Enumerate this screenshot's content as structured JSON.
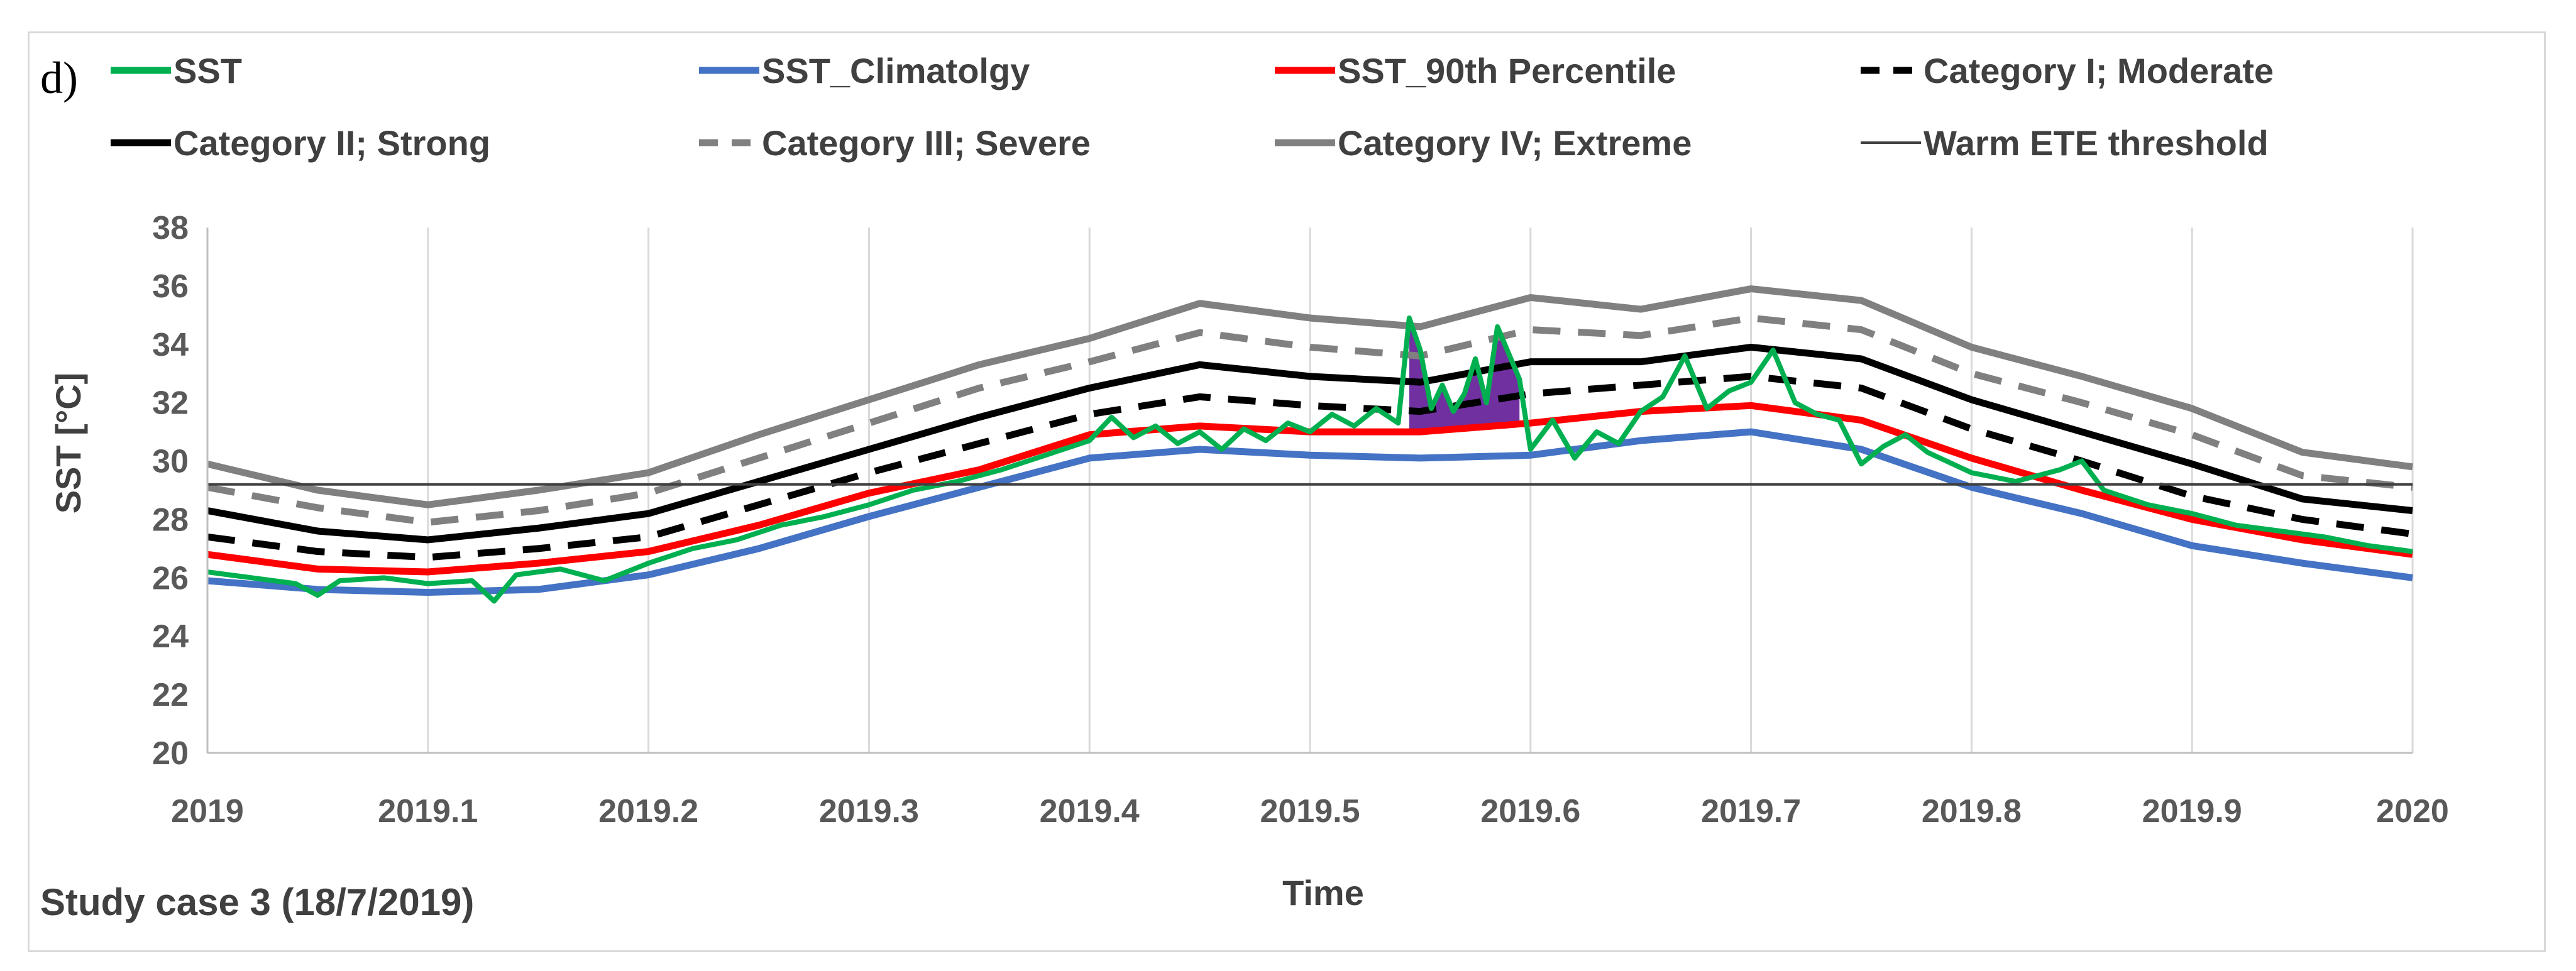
{
  "chart_data": {
    "type": "line",
    "panel_label": "d)",
    "note": "Study case 3 (18/7/2019)",
    "xlabel": "Time",
    "ylabel": "SST [°C]",
    "xlim": [
      2019,
      2020
    ],
    "ylim": [
      20,
      38
    ],
    "x_ticks": [
      "2019",
      "2019.1",
      "2019.2",
      "2019.3",
      "2019.4",
      "2019.5",
      "2019.6",
      "2019.7",
      "2019.8",
      "2019.9",
      "2020"
    ],
    "y_ticks": [
      "20",
      "22",
      "24",
      "26",
      "28",
      "30",
      "32",
      "34",
      "36",
      "38"
    ],
    "grid": "vertical",
    "legend_position": "top",
    "threshold": {
      "name": "Warm ETE threshold",
      "value": 29.2,
      "color": "#404040"
    },
    "shaded_event": {
      "x_start": 2019.545,
      "x_end": 2019.595,
      "color": "#7030a0"
    },
    "legend": [
      {
        "name": "SST",
        "color": "#00b050",
        "style": "solid"
      },
      {
        "name": "SST_Climatolgy",
        "color": "#4472c4",
        "style": "solid"
      },
      {
        "name": "SST_90th Percentile",
        "color": "#ff0000",
        "style": "solid"
      },
      {
        "name": "Category I; Moderate",
        "color": "#000000",
        "style": "dashed"
      },
      {
        "name": "Category II; Strong",
        "color": "#000000",
        "style": "solid"
      },
      {
        "name": "Category III; Severe",
        "color": "#808080",
        "style": "dashed"
      },
      {
        "name": "Category IV; Extreme",
        "color": "#808080",
        "style": "solid"
      },
      {
        "name": "Warm ETE threshold",
        "color": "#404040",
        "style": "thin"
      }
    ],
    "series": [
      {
        "name": "SST_Climatolgy",
        "color": "#4472c4",
        "style": "solid",
        "x": [
          2019,
          2019.05,
          2019.1,
          2019.15,
          2019.2,
          2019.25,
          2019.3,
          2019.35,
          2019.4,
          2019.45,
          2019.5,
          2019.55,
          2019.6,
          2019.65,
          2019.7,
          2019.75,
          2019.8,
          2019.85,
          2019.9,
          2019.95,
          2020
        ],
        "y": [
          25.9,
          25.6,
          25.5,
          25.6,
          26.1,
          27.0,
          28.1,
          29.1,
          30.1,
          30.4,
          30.2,
          30.1,
          30.2,
          30.7,
          31.0,
          30.4,
          29.1,
          28.2,
          27.1,
          26.5,
          26.0
        ]
      },
      {
        "name": "SST_90th Percentile",
        "color": "#ff0000",
        "style": "solid",
        "x": [
          2019,
          2019.05,
          2019.1,
          2019.15,
          2019.2,
          2019.25,
          2019.3,
          2019.35,
          2019.4,
          2019.45,
          2019.5,
          2019.55,
          2019.6,
          2019.65,
          2019.7,
          2019.75,
          2019.8,
          2019.85,
          2019.9,
          2019.95,
          2020
        ],
        "y": [
          26.8,
          26.3,
          26.2,
          26.5,
          26.9,
          27.8,
          28.9,
          29.7,
          30.9,
          31.2,
          31.0,
          31.0,
          31.3,
          31.7,
          31.9,
          31.4,
          30.1,
          29.0,
          28.0,
          27.3,
          26.8
        ]
      },
      {
        "name": "Category I; Moderate",
        "color": "#000000",
        "style": "dashed",
        "x": [
          2019,
          2019.05,
          2019.1,
          2019.15,
          2019.2,
          2019.25,
          2019.3,
          2019.35,
          2019.4,
          2019.45,
          2019.5,
          2019.55,
          2019.6,
          2019.65,
          2019.7,
          2019.75,
          2019.8,
          2019.85,
          2019.9,
          2019.95,
          2020
        ],
        "y": [
          27.4,
          26.9,
          26.7,
          27.0,
          27.4,
          28.5,
          29.6,
          30.6,
          31.6,
          32.2,
          31.9,
          31.7,
          32.3,
          32.6,
          32.9,
          32.5,
          31.1,
          30.0,
          28.8,
          28.0,
          27.5
        ]
      },
      {
        "name": "Category II; Strong",
        "color": "#000000",
        "style": "solid",
        "x": [
          2019,
          2019.05,
          2019.1,
          2019.15,
          2019.2,
          2019.25,
          2019.3,
          2019.35,
          2019.4,
          2019.45,
          2019.5,
          2019.55,
          2019.6,
          2019.65,
          2019.7,
          2019.75,
          2019.8,
          2019.85,
          2019.9,
          2019.95,
          2020
        ],
        "y": [
          28.3,
          27.6,
          27.3,
          27.7,
          28.2,
          29.3,
          30.4,
          31.5,
          32.5,
          33.3,
          32.9,
          32.7,
          33.4,
          33.4,
          33.9,
          33.5,
          32.1,
          31.0,
          29.9,
          28.7,
          28.3
        ]
      },
      {
        "name": "Category III; Severe",
        "color": "#808080",
        "style": "dashed",
        "x": [
          2019,
          2019.05,
          2019.1,
          2019.15,
          2019.2,
          2019.25,
          2019.3,
          2019.35,
          2019.4,
          2019.45,
          2019.5,
          2019.55,
          2019.6,
          2019.65,
          2019.7,
          2019.75,
          2019.8,
          2019.85,
          2019.9,
          2019.95,
          2020
        ],
        "y": [
          29.1,
          28.4,
          27.9,
          28.3,
          28.9,
          30.1,
          31.3,
          32.5,
          33.4,
          34.4,
          33.9,
          33.6,
          34.5,
          34.3,
          34.9,
          34.5,
          33.0,
          32.0,
          30.9,
          29.5,
          29.1
        ]
      },
      {
        "name": "Category IV; Extreme",
        "color": "#808080",
        "style": "solid",
        "x": [
          2019,
          2019.05,
          2019.1,
          2019.15,
          2019.2,
          2019.25,
          2019.3,
          2019.35,
          2019.4,
          2019.45,
          2019.5,
          2019.55,
          2019.6,
          2019.65,
          2019.7,
          2019.75,
          2019.8,
          2019.85,
          2019.9,
          2019.95,
          2020
        ],
        "y": [
          29.9,
          29.0,
          28.5,
          29.0,
          29.6,
          30.9,
          32.1,
          33.3,
          34.2,
          35.4,
          34.9,
          34.6,
          35.6,
          35.2,
          35.9,
          35.5,
          33.9,
          32.9,
          31.8,
          30.3,
          29.8
        ]
      },
      {
        "name": "SST",
        "color": "#00b050",
        "style": "solid",
        "x": [
          2019,
          2019.02,
          2019.04,
          2019.05,
          2019.06,
          2019.08,
          2019.1,
          2019.12,
          2019.13,
          2019.14,
          2019.16,
          2019.18,
          2019.2,
          2019.22,
          2019.24,
          2019.26,
          2019.28,
          2019.3,
          2019.32,
          2019.34,
          2019.36,
          2019.38,
          2019.4,
          2019.41,
          2019.42,
          2019.43,
          2019.44,
          2019.45,
          2019.46,
          2019.47,
          2019.48,
          2019.49,
          2019.5,
          2019.51,
          2019.52,
          2019.53,
          2019.54,
          2019.545,
          2019.55,
          2019.555,
          2019.56,
          2019.565,
          2019.57,
          2019.575,
          2019.58,
          2019.585,
          2019.59,
          2019.595,
          2019.6,
          2019.61,
          2019.62,
          2019.63,
          2019.64,
          2019.65,
          2019.66,
          2019.67,
          2019.68,
          2019.69,
          2019.7,
          2019.71,
          2019.72,
          2019.73,
          2019.74,
          2019.75,
          2019.76,
          2019.77,
          2019.78,
          2019.8,
          2019.82,
          2019.84,
          2019.85,
          2019.86,
          2019.88,
          2019.9,
          2019.92,
          2019.94,
          2019.96,
          2019.98,
          2020
        ],
        "y": [
          26.2,
          26.0,
          25.8,
          25.4,
          25.9,
          26.0,
          25.8,
          25.9,
          25.2,
          26.1,
          26.3,
          25.9,
          26.5,
          27.0,
          27.3,
          27.8,
          28.1,
          28.5,
          29.0,
          29.3,
          29.7,
          30.2,
          30.7,
          31.5,
          30.8,
          31.2,
          30.6,
          31.0,
          30.4,
          31.1,
          30.7,
          31.3,
          31.0,
          31.6,
          31.2,
          31.8,
          31.3,
          34.9,
          33.8,
          31.8,
          32.6,
          31.7,
          32.3,
          33.5,
          32.0,
          34.6,
          33.7,
          32.8,
          30.4,
          31.4,
          30.1,
          31.0,
          30.6,
          31.7,
          32.2,
          33.6,
          31.8,
          32.4,
          32.7,
          33.8,
          32.0,
          31.6,
          31.4,
          29.9,
          30.5,
          30.9,
          30.3,
          29.6,
          29.3,
          29.7,
          30.0,
          29.0,
          28.5,
          28.2,
          27.8,
          27.6,
          27.4,
          27.1,
          26.9
        ]
      }
    ]
  }
}
